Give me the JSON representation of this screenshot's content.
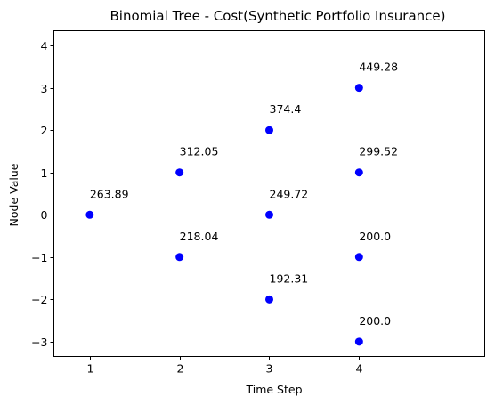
{
  "chart_data": {
    "type": "scatter",
    "title": "Binomial Tree - Cost(Synthetic Portfolio Insurance)",
    "xlabel": "Time Step",
    "ylabel": "Node Value",
    "xlim": [
      0.6,
      5.4
    ],
    "ylim": [
      -3.35,
      4.35
    ],
    "x_ticks": [
      1,
      2,
      3,
      4
    ],
    "x_tick_labels": [
      "1",
      "2",
      "3",
      "4"
    ],
    "y_ticks": [
      -3,
      -2,
      -1,
      0,
      1,
      2,
      3,
      4
    ],
    "y_tick_labels": [
      "−3",
      "−2",
      "−1",
      "0",
      "1",
      "2",
      "3",
      "4"
    ],
    "grid": false,
    "marker_color": "#0000ff",
    "points": [
      {
        "x": 1,
        "y": 0,
        "label": "263.89"
      },
      {
        "x": 2,
        "y": 1,
        "label": "312.05"
      },
      {
        "x": 2,
        "y": -1,
        "label": "218.04"
      },
      {
        "x": 3,
        "y": 2,
        "label": "374.4"
      },
      {
        "x": 3,
        "y": 0,
        "label": "249.72"
      },
      {
        "x": 3,
        "y": -2,
        "label": "192.31"
      },
      {
        "x": 4,
        "y": 3,
        "label": "449.28"
      },
      {
        "x": 4,
        "y": 1,
        "label": "299.52"
      },
      {
        "x": 4,
        "y": -1,
        "label": "200.0"
      },
      {
        "x": 4,
        "y": -3,
        "label": "200.0"
      }
    ]
  }
}
